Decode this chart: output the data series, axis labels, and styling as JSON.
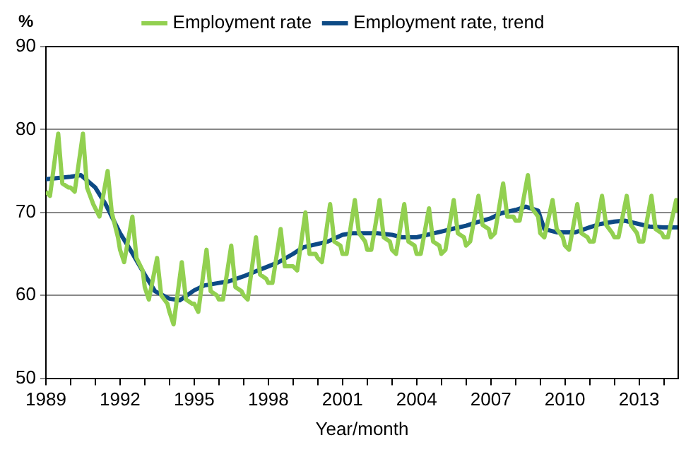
{
  "chart_data": {
    "type": "line",
    "ylabel": "%",
    "xlabel": "Year/month",
    "legend": "top",
    "grid": "y",
    "marker": "none",
    "line_style": "solid",
    "xlim": [
      "1989",
      "2014-08"
    ],
    "ylim": [
      50,
      90
    ],
    "yticks": [
      50,
      60,
      70,
      80,
      90
    ],
    "xticks": [
      {
        "value": "1989",
        "label": "1989"
      },
      {
        "value": "1990",
        "label": null
      },
      {
        "value": "1991",
        "label": null
      },
      {
        "value": "1992",
        "label": "1992"
      },
      {
        "value": "1993",
        "label": null
      },
      {
        "value": "1994",
        "label": null
      },
      {
        "value": "1995",
        "label": "1995"
      },
      {
        "value": "1996",
        "label": null
      },
      {
        "value": "1997",
        "label": null
      },
      {
        "value": "1998",
        "label": "1998"
      },
      {
        "value": "1999",
        "label": null
      },
      {
        "value": "2000",
        "label": null
      },
      {
        "value": "2001",
        "label": "2001"
      },
      {
        "value": "2002",
        "label": null
      },
      {
        "value": "2003",
        "label": null
      },
      {
        "value": "2004",
        "label": "2004"
      },
      {
        "value": "2005",
        "label": null
      },
      {
        "value": "2006",
        "label": null
      },
      {
        "value": "2007",
        "label": "2007"
      },
      {
        "value": "2008",
        "label": null
      },
      {
        "value": "2009",
        "label": null
      },
      {
        "value": "2010",
        "label": "2010"
      },
      {
        "value": "2011",
        "label": null
      },
      {
        "value": "2012",
        "label": null
      },
      {
        "value": "2013",
        "label": "2013"
      },
      {
        "value": "2014",
        "label": null
      }
    ],
    "series": [
      {
        "name": "Employment rate",
        "color": "#92d050",
        "x": [
          "1989-01",
          "1989-03",
          "1989-07",
          "1989-09",
          "1989-12",
          "1990-01",
          "1990-03",
          "1990-07",
          "1990-09",
          "1990-12",
          "1991-01",
          "1991-03",
          "1991-07",
          "1991-09",
          "1991-12",
          "1992-01",
          "1992-03",
          "1992-07",
          "1992-09",
          "1992-12",
          "1993-01",
          "1993-03",
          "1993-07",
          "1993-09",
          "1993-12",
          "1994-01",
          "1994-03",
          "1994-07",
          "1994-09",
          "1994-12",
          "1995-01",
          "1995-03",
          "1995-07",
          "1995-09",
          "1995-12",
          "1996-01",
          "1996-03",
          "1996-07",
          "1996-09",
          "1996-12",
          "1997-01",
          "1997-03",
          "1997-07",
          "1997-09",
          "1997-12",
          "1998-01",
          "1998-03",
          "1998-07",
          "1998-09",
          "1998-12",
          "1999-01",
          "1999-03",
          "1999-07",
          "1999-09",
          "1999-12",
          "2000-01",
          "2000-03",
          "2000-07",
          "2000-09",
          "2000-12",
          "2001-01",
          "2001-03",
          "2001-07",
          "2001-09",
          "2001-12",
          "2002-01",
          "2002-03",
          "2002-07",
          "2002-09",
          "2002-12",
          "2003-01",
          "2003-03",
          "2003-07",
          "2003-09",
          "2003-12",
          "2004-01",
          "2004-03",
          "2004-07",
          "2004-09",
          "2004-12",
          "2005-01",
          "2005-03",
          "2005-07",
          "2005-09",
          "2005-12",
          "2006-01",
          "2006-03",
          "2006-07",
          "2006-09",
          "2006-12",
          "2007-01",
          "2007-03",
          "2007-07",
          "2007-09",
          "2007-12",
          "2008-01",
          "2008-03",
          "2008-07",
          "2008-09",
          "2008-12",
          "2009-01",
          "2009-03",
          "2009-07",
          "2009-09",
          "2009-12",
          "2010-01",
          "2010-03",
          "2010-07",
          "2010-09",
          "2010-12",
          "2011-01",
          "2011-03",
          "2011-07",
          "2011-09",
          "2011-12",
          "2012-01",
          "2012-03",
          "2012-07",
          "2012-09",
          "2012-12",
          "2013-01",
          "2013-03",
          "2013-07",
          "2013-09",
          "2013-12",
          "2014-01",
          "2014-03",
          "2014-07",
          "2014-08"
        ],
        "values": [
          72.5,
          72,
          79.5,
          73.5,
          73,
          73,
          72.5,
          79.5,
          73,
          71,
          70.5,
          69.5,
          75,
          70,
          67,
          65.5,
          64,
          69.5,
          64.5,
          63,
          61,
          59.5,
          64.5,
          60,
          59,
          58,
          56.5,
          64,
          59.5,
          59,
          59,
          58,
          65.5,
          60.5,
          60,
          59.5,
          59.5,
          66,
          61,
          60.5,
          60,
          59.5,
          67,
          62.5,
          62,
          61.5,
          61.5,
          68,
          63.5,
          63.5,
          63.5,
          63,
          70,
          65,
          65,
          64.5,
          64,
          71,
          66.5,
          66,
          65,
          65,
          71.5,
          67.5,
          66.5,
          65.5,
          65.5,
          71.5,
          67,
          66.5,
          65.5,
          65,
          71,
          66.5,
          66,
          65,
          65,
          70.5,
          66.5,
          66,
          65,
          65.5,
          71.5,
          67.5,
          67,
          66,
          66.5,
          72,
          68.5,
          68,
          67,
          67.5,
          73.5,
          69.5,
          69.5,
          69,
          69,
          74.5,
          70.5,
          69.5,
          67.5,
          67,
          71.5,
          68,
          67,
          66,
          65.5,
          71,
          67.5,
          67,
          66.5,
          66.5,
          72,
          68.5,
          67.5,
          67,
          67,
          72,
          68.5,
          67.5,
          66.5,
          66.5,
          72,
          68,
          67.5,
          67,
          67,
          71.5,
          70
        ]
      },
      {
        "name": "Employment rate, trend",
        "color": "#0d4a85",
        "x": [
          "1989-01",
          "1990-01",
          "1990-06",
          "1991-01",
          "1991-06",
          "1992-01",
          "1992-06",
          "1993-01",
          "1993-06",
          "1994-01",
          "1994-06",
          "1995-01",
          "1995-06",
          "1996-01",
          "1996-06",
          "1997-01",
          "1997-06",
          "1998-01",
          "1998-06",
          "1999-01",
          "1999-06",
          "2000-01",
          "2000-06",
          "2001-01",
          "2001-06",
          "2002-06",
          "2003-01",
          "2003-06",
          "2004-01",
          "2004-06",
          "2005-01",
          "2005-06",
          "2006-01",
          "2006-06",
          "2007-01",
          "2007-06",
          "2008-01",
          "2008-06",
          "2008-12",
          "2009-03",
          "2009-09",
          "2010-06",
          "2011-01",
          "2011-06",
          "2012-01",
          "2012-06",
          "2013-01",
          "2013-06",
          "2014-01",
          "2014-08"
        ],
        "values": [
          74,
          74.3,
          74.5,
          73,
          71,
          67.5,
          65.5,
          62.5,
          60.5,
          59.6,
          59.4,
          60.6,
          61.2,
          61.5,
          61.7,
          62.3,
          62.8,
          63.5,
          64,
          65,
          65.8,
          66.2,
          66.5,
          67.3,
          67.5,
          67.5,
          67.3,
          67,
          67,
          67.3,
          67.7,
          68,
          68.4,
          68.8,
          69.3,
          69.9,
          70.3,
          70.7,
          70.2,
          68,
          67.6,
          67.6,
          68.2,
          68.6,
          68.9,
          69,
          68.6,
          68.3,
          68.2,
          68.2
        ]
      }
    ]
  }
}
